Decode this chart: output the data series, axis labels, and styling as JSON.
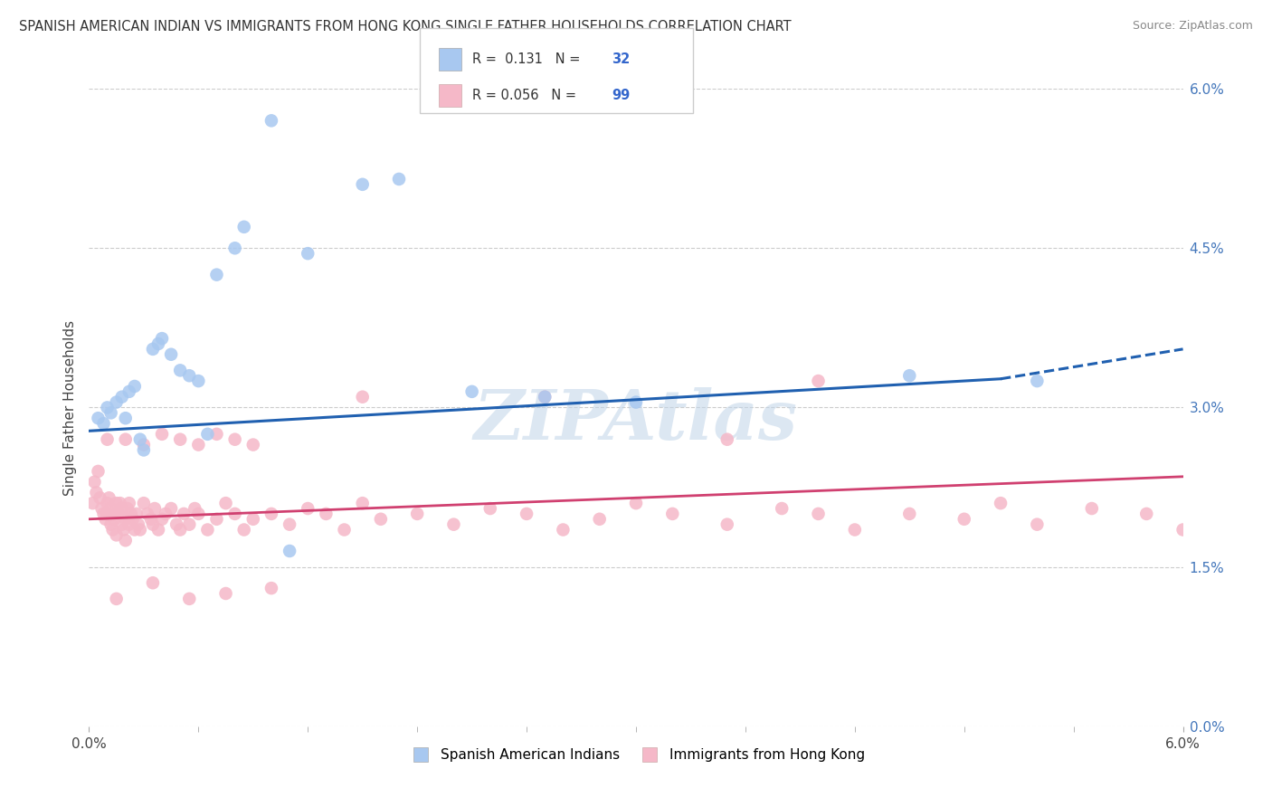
{
  "title": "SPANISH AMERICAN INDIAN VS IMMIGRANTS FROM HONG KONG SINGLE FATHER HOUSEHOLDS CORRELATION CHART",
  "source": "Source: ZipAtlas.com",
  "ylabel": "Single Father Households",
  "right_ytick_vals": [
    0.0,
    1.5,
    3.0,
    4.5,
    6.0
  ],
  "xrange": [
    0.0,
    6.0
  ],
  "yrange": [
    0.0,
    6.0
  ],
  "watermark": "ZIPAtlas",
  "series1_color": "#a8c8f0",
  "series2_color": "#f5b8c8",
  "line1_color": "#2060b0",
  "line2_color": "#d04070",
  "series1_label": "Spanish American Indians",
  "series2_label": "Immigrants from Hong Kong",
  "blue_x": [
    0.05,
    0.08,
    0.1,
    0.12,
    0.15,
    0.18,
    0.2,
    0.22,
    0.25,
    0.28,
    0.3,
    0.35,
    0.38,
    0.4,
    0.45,
    0.5,
    0.55,
    0.6,
    0.65,
    0.7,
    0.8,
    0.85,
    1.0,
    1.1,
    1.2,
    1.5,
    1.7,
    2.1,
    2.5,
    3.0,
    4.5,
    5.2
  ],
  "blue_y": [
    2.9,
    2.85,
    3.0,
    2.95,
    3.05,
    3.1,
    2.9,
    3.15,
    3.2,
    2.7,
    2.6,
    3.55,
    3.6,
    3.65,
    3.5,
    3.35,
    3.3,
    3.25,
    2.75,
    4.25,
    4.5,
    4.7,
    5.7,
    1.65,
    4.45,
    5.1,
    5.15,
    3.15,
    3.1,
    3.05,
    3.3,
    3.25
  ],
  "pink_x": [
    0.02,
    0.03,
    0.04,
    0.05,
    0.06,
    0.07,
    0.08,
    0.09,
    0.1,
    0.1,
    0.11,
    0.12,
    0.12,
    0.13,
    0.14,
    0.14,
    0.15,
    0.15,
    0.16,
    0.17,
    0.18,
    0.18,
    0.19,
    0.2,
    0.2,
    0.21,
    0.22,
    0.22,
    0.23,
    0.24,
    0.25,
    0.26,
    0.27,
    0.28,
    0.3,
    0.32,
    0.34,
    0.35,
    0.36,
    0.38,
    0.4,
    0.42,
    0.45,
    0.48,
    0.5,
    0.52,
    0.55,
    0.58,
    0.6,
    0.65,
    0.7,
    0.75,
    0.8,
    0.85,
    0.9,
    1.0,
    1.1,
    1.2,
    1.3,
    1.4,
    1.5,
    1.6,
    1.8,
    2.0,
    2.2,
    2.4,
    2.6,
    2.8,
    3.0,
    3.2,
    3.5,
    3.8,
    4.0,
    4.2,
    4.5,
    4.8,
    5.0,
    5.2,
    5.5,
    5.8,
    6.0,
    0.1,
    0.2,
    0.3,
    0.4,
    0.5,
    0.6,
    0.7,
    0.8,
    0.9,
    1.5,
    2.5,
    3.5,
    0.15,
    0.35,
    0.55,
    0.75,
    1.0,
    4.0
  ],
  "pink_y": [
    2.1,
    2.3,
    2.2,
    2.4,
    2.15,
    2.05,
    2.0,
    1.95,
    2.0,
    2.1,
    2.15,
    1.9,
    2.05,
    1.85,
    1.95,
    2.0,
    1.8,
    2.1,
    2.0,
    2.1,
    1.9,
    2.05,
    1.85,
    1.75,
    1.95,
    2.05,
    1.9,
    2.1,
    2.0,
    1.95,
    1.85,
    2.0,
    1.9,
    1.85,
    2.1,
    2.0,
    1.95,
    1.9,
    2.05,
    1.85,
    1.95,
    2.0,
    2.05,
    1.9,
    1.85,
    2.0,
    1.9,
    2.05,
    2.0,
    1.85,
    1.95,
    2.1,
    2.0,
    1.85,
    1.95,
    2.0,
    1.9,
    2.05,
    2.0,
    1.85,
    2.1,
    1.95,
    2.0,
    1.9,
    2.05,
    2.0,
    1.85,
    1.95,
    2.1,
    2.0,
    1.9,
    2.05,
    2.0,
    1.85,
    2.0,
    1.95,
    2.1,
    1.9,
    2.05,
    2.0,
    1.85,
    2.7,
    2.7,
    2.65,
    2.75,
    2.7,
    2.65,
    2.75,
    2.7,
    2.65,
    3.1,
    3.1,
    2.7,
    1.2,
    1.35,
    1.2,
    1.25,
    1.3,
    3.25
  ],
  "blue_line_x": [
    0.0,
    5.0,
    6.0
  ],
  "blue_line_y": [
    2.78,
    3.27,
    3.55
  ],
  "blue_solid_end": 5.0,
  "pink_line_x": [
    0.0,
    6.0
  ],
  "pink_line_y": [
    1.95,
    2.35
  ],
  "grid_color": "#cccccc",
  "background_color": "#ffffff",
  "title_fontsize": 10.5,
  "source_fontsize": 9,
  "watermark_color": "#c0d4e8",
  "tick_color": "#4477bb"
}
